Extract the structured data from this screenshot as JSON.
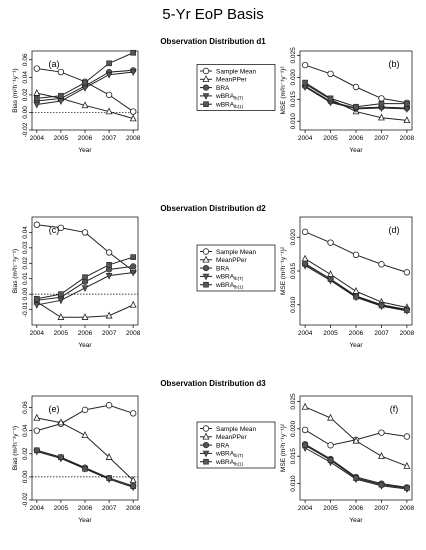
{
  "title": "5-Yr EoP Basis",
  "legend": [
    "Sample Mean",
    "MeanPPer",
    "BRA",
    "wBRA",
    "wBRA"
  ],
  "legend_subscripts": [
    "",
    "",
    "",
    "lb(T)",
    "lb(1)"
  ],
  "x_axis_label": "Year",
  "bias_axis_label": "Bias  (m",
  "bias_axis_units": "²h⁻¹y⁻¹)",
  "mse_axis_label": "MSE  (m",
  "mse_axis_units": "²h⁻¹y⁻¹)²",
  "chart_data": [
    {
      "type": "line",
      "section": "Observation Distribution d1",
      "panel": "(a)",
      "metric": "Bias",
      "x": [
        2004,
        2005,
        2006,
        2007,
        2008
      ],
      "ylim": [
        -0.02,
        0.07
      ],
      "yticks": [
        -0.02,
        0.0,
        0.02,
        0.04,
        0.06
      ],
      "yticklabels": [
        "-0.02",
        "0.00",
        "0.02",
        "0.04",
        "0.06"
      ],
      "zero_line": true,
      "label_pos": "left",
      "series": [
        {
          "name": "Sample Mean",
          "values": [
            0.05,
            0.046,
            0.035,
            0.02,
            0.001
          ]
        },
        {
          "name": "MeanPPer",
          "values": [
            0.022,
            0.016,
            0.008,
            0.001,
            -0.007
          ]
        },
        {
          "name": "BRA",
          "values": [
            0.013,
            0.016,
            0.03,
            0.046,
            0.048
          ]
        },
        {
          "name": "wBRAlb(T)",
          "values": [
            0.009,
            0.013,
            0.028,
            0.043,
            0.046
          ]
        },
        {
          "name": "wBRAlb(1)",
          "values": [
            0.016,
            0.019,
            0.034,
            0.056,
            0.068
          ]
        }
      ]
    },
    {
      "type": "line",
      "section": "Observation Distribution d1",
      "panel": "(b)",
      "metric": "MSE",
      "x": [
        2004,
        2005,
        2006,
        2007,
        2008
      ],
      "ylim": [
        0.008,
        0.026
      ],
      "yticks": [
        0.01,
        0.015,
        0.02,
        0.025
      ],
      "yticklabels": [
        "0.010",
        "0.015",
        "0.020",
        "0.025"
      ],
      "zero_line": false,
      "label_pos": "right",
      "series": [
        {
          "name": "Sample Mean",
          "values": [
            0.0228,
            0.0208,
            0.0178,
            0.0152,
            0.0142
          ]
        },
        {
          "name": "MeanPPer",
          "values": [
            0.0185,
            0.015,
            0.0122,
            0.0108,
            0.0102
          ]
        },
        {
          "name": "BRA",
          "values": [
            0.018,
            0.0145,
            0.013,
            0.0132,
            0.013
          ]
        },
        {
          "name": "wBRAlb(T)",
          "values": [
            0.0178,
            0.0143,
            0.0128,
            0.013,
            0.0128
          ]
        },
        {
          "name": "wBRAlb(1)",
          "values": [
            0.0188,
            0.0152,
            0.0133,
            0.014,
            0.014
          ]
        }
      ]
    },
    {
      "type": "line",
      "section": "Observation Distribution d2",
      "panel": "(c)",
      "metric": "Bias",
      "x": [
        2004,
        2005,
        2006,
        2007,
        2008
      ],
      "ylim": [
        -0.02,
        0.05
      ],
      "yticks": [
        -0.01,
        0.0,
        0.01,
        0.02,
        0.03,
        0.04
      ],
      "yticklabels": [
        "-0.01",
        "0.00",
        "0.01",
        "0.02",
        "0.03",
        "0.04"
      ],
      "zero_line": true,
      "label_pos": "left",
      "series": [
        {
          "name": "Sample Mean",
          "values": [
            0.045,
            0.043,
            0.04,
            0.027,
            0.015
          ]
        },
        {
          "name": "MeanPPer",
          "values": [
            -0.005,
            -0.015,
            -0.015,
            -0.014,
            -0.007
          ]
        },
        {
          "name": "BRA",
          "values": [
            -0.004,
            -0.002,
            0.008,
            0.016,
            0.018
          ]
        },
        {
          "name": "wBRAlb(T)",
          "values": [
            -0.007,
            -0.004,
            0.004,
            0.012,
            0.014
          ]
        },
        {
          "name": "wBRAlb(1)",
          "values": [
            -0.003,
            0.0,
            0.011,
            0.019,
            0.024
          ]
        }
      ]
    },
    {
      "type": "line",
      "section": "Observation Distribution d2",
      "panel": "(d)",
      "metric": "MSE",
      "x": [
        2004,
        2005,
        2006,
        2007,
        2008
      ],
      "ylim": [
        0.007,
        0.023
      ],
      "yticks": [
        0.01,
        0.015,
        0.02
      ],
      "yticklabels": [
        "0.010",
        "0.015",
        "0.020"
      ],
      "zero_line": false,
      "label_pos": "right",
      "series": [
        {
          "name": "Sample Mean",
          "values": [
            0.0208,
            0.0192,
            0.0174,
            0.016,
            0.0148
          ]
        },
        {
          "name": "MeanPPer",
          "values": [
            0.0168,
            0.0145,
            0.012,
            0.0104,
            0.0096
          ]
        },
        {
          "name": "BRA",
          "values": [
            0.016,
            0.0138,
            0.0113,
            0.01,
            0.0093
          ]
        },
        {
          "name": "wBRAlb(T)",
          "values": [
            0.0158,
            0.0136,
            0.0111,
            0.0098,
            0.0091
          ]
        },
        {
          "name": "wBRAlb(1)",
          "values": [
            0.0161,
            0.0138,
            0.0112,
            0.0099,
            0.0092
          ]
        }
      ]
    },
    {
      "type": "line",
      "section": "Observation Distribution d3",
      "panel": "(e)",
      "metric": "Bias",
      "x": [
        2004,
        2005,
        2006,
        2007,
        2008
      ],
      "ylim": [
        -0.02,
        0.07
      ],
      "yticks": [
        -0.02,
        0.0,
        0.02,
        0.04,
        0.06
      ],
      "yticklabels": [
        "-0.02",
        "0.00",
        "0.02",
        "0.04",
        "0.06"
      ],
      "zero_line": true,
      "label_pos": "left",
      "series": [
        {
          "name": "Sample Mean",
          "values": [
            0.04,
            0.046,
            0.058,
            0.062,
            0.055
          ]
        },
        {
          "name": "MeanPPer",
          "values": [
            0.051,
            0.047,
            0.036,
            0.017,
            -0.003
          ]
        },
        {
          "name": "BRA",
          "values": [
            0.023,
            0.017,
            0.008,
            -0.001,
            -0.008
          ]
        },
        {
          "name": "wBRAlb(T)",
          "values": [
            0.022,
            0.016,
            0.007,
            -0.002,
            -0.009
          ]
        },
        {
          "name": "wBRAlb(1)",
          "values": [
            0.023,
            0.017,
            0.007,
            -0.001,
            -0.008
          ]
        }
      ]
    },
    {
      "type": "line",
      "section": "Observation Distribution d3",
      "panel": "(f)",
      "metric": "MSE",
      "x": [
        2004,
        2005,
        2006,
        2007,
        2008
      ],
      "ylim": [
        0.007,
        0.026
      ],
      "yticks": [
        0.01,
        0.015,
        0.02,
        0.025
      ],
      "yticklabels": [
        "0.010",
        "0.015",
        "0.020",
        "0.025"
      ],
      "zero_line": false,
      "label_pos": "right",
      "series": [
        {
          "name": "Sample Mean",
          "values": [
            0.0198,
            0.017,
            0.018,
            0.0193,
            0.0186
          ]
        },
        {
          "name": "MeanPPer",
          "values": [
            0.024,
            0.022,
            0.0178,
            0.015,
            0.0132
          ]
        },
        {
          "name": "BRA",
          "values": [
            0.0172,
            0.0145,
            0.0112,
            0.01,
            0.0093
          ]
        },
        {
          "name": "wBRAlb(T)",
          "values": [
            0.0165,
            0.0139,
            0.0108,
            0.0096,
            0.009
          ]
        },
        {
          "name": "wBRAlb(1)",
          "values": [
            0.017,
            0.0143,
            0.011,
            0.0098,
            0.0092
          ]
        }
      ]
    }
  ]
}
